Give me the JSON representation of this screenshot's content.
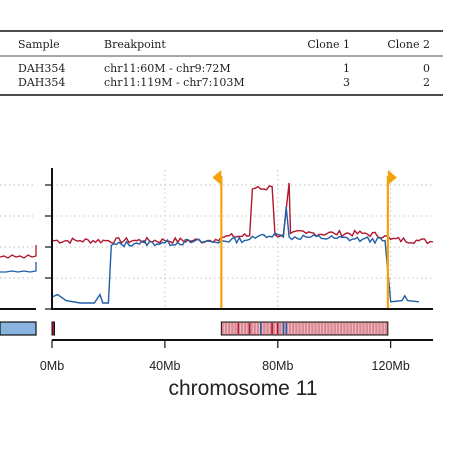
{
  "table": {
    "headers": [
      "Sample",
      "Breakpoint",
      "Clone 1",
      "Clone 2"
    ],
    "rows": [
      [
        "DAH354",
        "chr11:60M - chr9:72M",
        "1",
        "0"
      ],
      [
        "DAH354",
        "chr11:119M - chr7:103M",
        "3",
        "2"
      ]
    ]
  },
  "chart_data": {
    "type": "line",
    "xlabel": "chromosome 11",
    "x_unit": "Mb",
    "xlim": [
      0,
      135
    ],
    "x_ticks": [
      {
        "value": 0,
        "label": "0Mb"
      },
      {
        "value": 40,
        "label": "40Mb"
      },
      {
        "value": 80,
        "label": "80Mb"
      },
      {
        "value": 120,
        "label": "120Mb"
      }
    ],
    "y_gridlines": 4,
    "grid": "dotted",
    "series_colors": {
      "red": "#b0182e",
      "blue": "#1f5fa8"
    },
    "series": [
      {
        "color": "red",
        "points": [
          [
            0,
            0.52
          ],
          [
            10,
            0.52
          ],
          [
            20,
            0.52
          ],
          [
            30,
            0.52
          ],
          [
            40,
            0.52
          ],
          [
            50,
            0.52
          ],
          [
            55,
            0.52
          ],
          [
            58,
            0.53
          ],
          [
            60,
            0.55
          ],
          [
            70,
            0.56
          ],
          [
            71,
            0.95
          ],
          [
            73,
            0.97
          ],
          [
            75,
            0.95
          ],
          [
            78,
            0.97
          ],
          [
            79,
            0.57
          ],
          [
            82,
            0.57
          ],
          [
            84,
            1.0
          ],
          [
            84.5,
            0.58
          ],
          [
            90,
            0.58
          ],
          [
            100,
            0.58
          ],
          [
            110,
            0.58
          ],
          [
            118,
            0.56
          ],
          [
            120,
            0.53
          ],
          [
            130,
            0.52
          ],
          [
            135,
            0.51
          ]
        ]
      },
      {
        "color": "blue",
        "points": [
          [
            0,
            0.05
          ],
          [
            2,
            0.07
          ],
          [
            5,
            0.02
          ],
          [
            10,
            0.0
          ],
          [
            15,
            0.0
          ],
          [
            17,
            0.07
          ],
          [
            18,
            0.0
          ],
          [
            20,
            0.0
          ],
          [
            21,
            0.48
          ],
          [
            30,
            0.5
          ],
          [
            40,
            0.5
          ],
          [
            50,
            0.51
          ],
          [
            57,
            0.51
          ],
          [
            59,
            0.5
          ],
          [
            60,
            0.52
          ],
          [
            70,
            0.53
          ],
          [
            72,
            0.54
          ],
          [
            75,
            0.57
          ],
          [
            80,
            0.57
          ],
          [
            82,
            0.55
          ],
          [
            83,
            0.8
          ],
          [
            84,
            0.55
          ],
          [
            90,
            0.55
          ],
          [
            100,
            0.54
          ],
          [
            110,
            0.53
          ],
          [
            118,
            0.52
          ],
          [
            120,
            0.01
          ],
          [
            124,
            0.02
          ],
          [
            125,
            0.06
          ],
          [
            126,
            0.02
          ],
          [
            130,
            0.01
          ]
        ]
      }
    ],
    "breakpoint_markers_mb": [
      60,
      119
    ],
    "marker_color": "#f5a20a",
    "karyotype_band": {
      "segments": [
        {
          "start": 0,
          "end": 0.6,
          "color": "#b0182e"
        },
        {
          "start": 60,
          "end": 119,
          "color": "#d98a94"
        }
      ],
      "accents": [
        {
          "pos": 66,
          "color": "#b0182e"
        },
        {
          "pos": 70,
          "color": "#b0182e"
        },
        {
          "pos": 74,
          "color": "#1f5fa8"
        },
        {
          "pos": 78,
          "color": "#b0182e"
        },
        {
          "pos": 80,
          "color": "#b0182e"
        },
        {
          "pos": 82,
          "color": "#1f5fa8"
        },
        {
          "pos": 83,
          "color": "#1f5fa8"
        }
      ]
    },
    "left_panel_colors": {
      "band": "#8ab4e0",
      "red_line": "#b0182e",
      "blue_line": "#1f5fa8"
    }
  }
}
